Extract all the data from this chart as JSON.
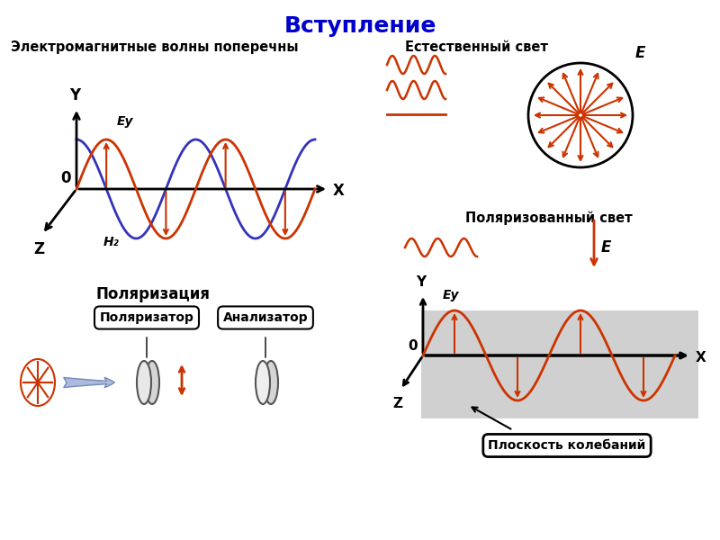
{
  "title": "Вступление",
  "title_color": "#0000cc",
  "bg_color": "#ffffff",
  "wave_color_red": "#cc3300",
  "wave_color_blue": "#3333bb",
  "axis_color": "#000000",
  "arrow_color": "#cc3300",
  "label_top_left": "Электромагнитные волны поперечны",
  "label_nat_light": "Естественный свет",
  "label_pol_light": "Поляризованный свет",
  "label_polarization": "Поляризация",
  "label_polarizator": "Поляризатор",
  "label_analizator": "Анализатор",
  "label_plane": "Плоскость колебаний",
  "label_Ey": "Eу",
  "label_Hz": "H₂",
  "label_E": "E"
}
